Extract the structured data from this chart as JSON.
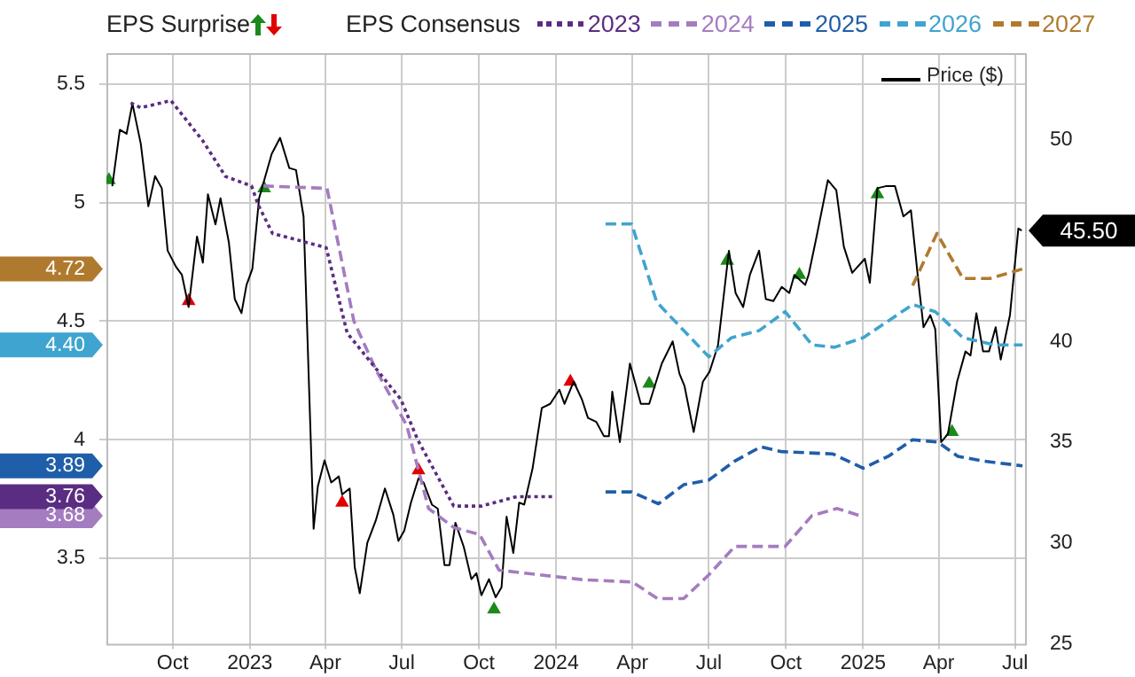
{
  "chart_data": {
    "type": "line",
    "legend_title": "EPS Consensus",
    "legend": "top",
    "grid": true,
    "annotations": [
      "EPS Surprise"
    ],
    "xlim": [
      "2022-07-14",
      "2025-07-13"
    ],
    "xticks": [
      {
        "value": "2022-10-01",
        "label": "Oct"
      },
      {
        "value": "2023-01-01",
        "label": "2023"
      },
      {
        "value": "2023-04-01",
        "label": "Apr"
      },
      {
        "value": "2023-07-01",
        "label": "Jul"
      },
      {
        "value": "2023-10-01",
        "label": "Oct"
      },
      {
        "value": "2024-01-01",
        "label": "2024"
      },
      {
        "value": "2024-04-01",
        "label": "Apr"
      },
      {
        "value": "2024-07-01",
        "label": "Jul"
      },
      {
        "value": "2024-10-01",
        "label": "Oct"
      },
      {
        "value": "2025-01-01",
        "label": "2025"
      },
      {
        "value": "2025-04-01",
        "label": "Apr"
      },
      {
        "value": "2025-07-01",
        "label": "Jul"
      }
    ],
    "ylim": [
      3.14,
      5.63
    ],
    "yticks": [
      3.5,
      {
        "value": 3.68,
        "label": "3.68"
      },
      {
        "value": 3.76,
        "label": "3.76"
      },
      {
        "value": 3.89,
        "label": "3.89"
      },
      4,
      {
        "value": 4.4,
        "label": "4.40"
      },
      4.5,
      {
        "value": 4.72,
        "label": "4.72"
      },
      5,
      5.5
    ],
    "y2lim": [
      25,
      54.3
    ],
    "y2ticks": [
      25,
      30,
      35,
      40,
      50
    ],
    "series": [
      {
        "name": "2023",
        "color": "#5a2d82",
        "line_style": "dotted",
        "marker": "none",
        "x": [
          "2022-08-12",
          "2022-08-24",
          "2022-09-29",
          "2022-11-06",
          "2022-12-03",
          "2023-01-03",
          "2023-01-11",
          "2023-01-28",
          "2023-04-02",
          "2023-04-27",
          "2023-06-30",
          "2023-07-20",
          "2023-09-01",
          "2023-10-04",
          "2023-11-15",
          "2023-12-28"
        ],
        "values": [
          5.42,
          5.4,
          5.43,
          5.26,
          5.11,
          5.07,
          4.99,
          4.87,
          4.81,
          4.45,
          4.17,
          4.0,
          3.72,
          3.72,
          3.76,
          3.76
        ]
      },
      {
        "name": "2024",
        "color": "#a47cc0",
        "line_style": "dashed",
        "marker": "none",
        "x": [
          "2023-01-17",
          "2023-04-03",
          "2023-05-05",
          "2023-06-01",
          "2023-07-07",
          "2023-08-02",
          "2023-09-01",
          "2023-10-02",
          "2023-10-25",
          "2024-02-01",
          "2024-04-01",
          "2024-05-01",
          "2024-06-01",
          "2024-07-01",
          "2024-08-01",
          "2024-09-30",
          "2024-11-01",
          "2024-12-01",
          "2024-12-28"
        ],
        "values": [
          5.07,
          5.06,
          4.5,
          4.29,
          4.06,
          3.71,
          3.63,
          3.6,
          3.45,
          3.41,
          3.4,
          3.33,
          3.33,
          3.43,
          3.55,
          3.55,
          3.68,
          3.71,
          3.68
        ]
      },
      {
        "name": "2025",
        "color": "#1f5ea8",
        "line_style": "dashed",
        "marker": "none",
        "x": [
          "2024-02-29",
          "2024-03-31",
          "2024-05-02",
          "2024-06-01",
          "2024-07-01",
          "2024-08-01",
          "2024-09-01",
          "2024-09-25",
          "2024-11-26",
          "2025-01-01",
          "2025-01-31",
          "2025-03-01",
          "2025-03-31",
          "2025-04-24",
          "2025-05-24",
          "2025-07-10"
        ],
        "values": [
          3.78,
          3.78,
          3.73,
          3.81,
          3.83,
          3.91,
          3.97,
          3.95,
          3.94,
          3.88,
          3.93,
          4.0,
          3.99,
          3.93,
          3.91,
          3.89
        ]
      },
      {
        "name": "2026",
        "color": "#3fa4cf",
        "line_style": "dashed",
        "marker": "none",
        "x": [
          "2024-02-29",
          "2024-03-31",
          "2024-04-30",
          "2024-07-01",
          "2024-07-28",
          "2024-08-30",
          "2024-09-30",
          "2024-11-01",
          "2024-11-28",
          "2025-01-01",
          "2025-03-01",
          "2025-03-28",
          "2025-04-30",
          "2025-06-07",
          "2025-07-10"
        ],
        "values": [
          4.91,
          4.91,
          4.58,
          4.35,
          4.43,
          4.46,
          4.54,
          4.4,
          4.39,
          4.43,
          4.57,
          4.54,
          4.43,
          4.4,
          4.4
        ]
      },
      {
        "name": "2027",
        "color": "#b07a2e",
        "line_style": "dashed",
        "marker": "none",
        "x": [
          "2025-03-01",
          "2025-03-30",
          "2025-04-30",
          "2025-06-01",
          "2025-07-10"
        ],
        "values": [
          4.65,
          4.87,
          4.68,
          4.68,
          4.72
        ]
      },
      {
        "name": "Price ($)",
        "color": "#000000",
        "axis": "y2",
        "line_style": "solid",
        "marker": "none",
        "x": [
          "2022-07-21",
          "2022-07-30",
          "2022-08-07",
          "2022-08-14",
          "2022-08-24",
          "2022-09-02",
          "2022-09-10",
          "2022-09-18",
          "2022-09-25",
          "2022-10-05",
          "2022-10-12",
          "2022-10-20",
          "2022-10-30",
          "2022-11-06",
          "2022-11-12",
          "2022-11-21",
          "2022-11-27",
          "2022-12-07",
          "2022-12-14",
          "2022-12-22",
          "2022-12-28",
          "2023-01-04",
          "2023-01-12",
          "2023-01-27",
          "2023-02-06",
          "2023-02-17",
          "2023-02-25",
          "2023-03-06",
          "2023-03-18",
          "2023-03-23",
          "2023-03-31",
          "2023-04-08",
          "2023-04-17",
          "2023-04-21",
          "2023-04-30",
          "2023-05-06",
          "2023-05-12",
          "2023-05-21",
          "2023-05-31",
          "2023-06-11",
          "2023-06-21",
          "2023-06-27",
          "2023-07-04",
          "2023-07-12",
          "2023-07-21",
          "2023-07-27",
          "2023-08-06",
          "2023-08-13",
          "2023-08-21",
          "2023-08-27",
          "2023-09-03",
          "2023-09-13",
          "2023-09-22",
          "2023-09-28",
          "2023-10-04",
          "2023-10-13",
          "2023-10-21",
          "2023-10-28",
          "2023-11-03",
          "2023-11-11",
          "2023-11-18",
          "2023-11-24",
          "2023-12-04",
          "2023-12-15",
          "2023-12-25",
          "2024-01-05",
          "2024-01-11",
          "2024-01-22",
          "2024-02-01",
          "2024-02-08",
          "2024-02-18",
          "2024-02-27",
          "2024-03-04",
          "2024-03-08",
          "2024-03-17",
          "2024-03-29",
          "2024-04-11",
          "2024-04-21",
          "2024-05-06",
          "2024-05-19",
          "2024-05-27",
          "2024-06-02",
          "2024-06-13",
          "2024-06-24",
          "2024-07-02",
          "2024-07-12",
          "2024-07-25",
          "2024-08-02",
          "2024-08-11",
          "2024-08-19",
          "2024-08-30",
          "2024-09-07",
          "2024-09-16",
          "2024-09-26",
          "2024-10-05",
          "2024-10-11",
          "2024-10-24",
          "2024-10-28",
          "2024-11-07",
          "2024-11-20",
          "2024-11-30",
          "2024-12-09",
          "2024-12-19",
          "2025-01-03",
          "2025-01-09",
          "2025-01-18",
          "2025-01-28",
          "2025-02-08",
          "2025-02-18",
          "2025-02-27",
          "2025-03-07",
          "2025-03-14",
          "2025-03-22",
          "2025-03-28",
          "2025-04-04",
          "2025-04-12",
          "2025-04-23",
          "2025-05-03",
          "2025-05-09",
          "2025-05-16",
          "2025-05-24",
          "2025-05-31",
          "2025-06-08",
          "2025-06-14",
          "2025-06-25",
          "2025-07-05",
          "2025-07-09"
        ],
        "values": [
          47.7,
          50.5,
          50.3,
          51.8,
          49.8,
          46.7,
          48.2,
          47.6,
          44.5,
          43.7,
          43.3,
          41.7,
          45.2,
          43.9,
          47.3,
          45.8,
          47.1,
          44.9,
          42.1,
          41.4,
          42.8,
          43.6,
          47.1,
          49.3,
          50.1,
          48.6,
          48.5,
          46.2,
          30.7,
          32.8,
          34.1,
          33.0,
          33.3,
          32.4,
          32.7,
          28.8,
          27.5,
          30.0,
          31.1,
          32.7,
          31.4,
          30.1,
          30.6,
          32.0,
          33.2,
          33.0,
          31.9,
          31.7,
          28.9,
          28.9,
          31.0,
          29.8,
          28.2,
          28.5,
          27.4,
          28.2,
          27.3,
          27.8,
          31.3,
          29.5,
          32.0,
          31.9,
          33.7,
          36.7,
          36.9,
          37.6,
          36.9,
          38.0,
          37.1,
          36.2,
          36.0,
          35.3,
          35.3,
          37.5,
          35.0,
          38.9,
          36.9,
          36.9,
          38.9,
          40.0,
          38.4,
          37.8,
          35.5,
          38.0,
          38.5,
          39.8,
          44.5,
          42.4,
          41.7,
          43.3,
          44.5,
          42.1,
          42.0,
          42.7,
          42.4,
          43.3,
          42.8,
          43.3,
          45.3,
          48.0,
          47.5,
          44.7,
          43.4,
          44.1,
          42.9,
          47.6,
          47.7,
          47.7,
          46.2,
          46.5,
          43.3,
          40.7,
          41.3,
          40.6,
          35.0,
          35.4,
          38.0,
          39.5,
          39.3,
          41.4,
          39.5,
          39.5,
          40.7,
          39.1,
          41.3,
          45.6,
          45.5
        ],
        "value_labels": [
          null,
          null,
          null,
          null,
          null,
          null,
          null,
          null,
          null,
          null,
          null,
          null,
          null,
          null,
          null,
          null,
          null,
          null,
          null,
          null,
          null,
          null,
          null,
          null,
          null,
          null,
          null,
          null,
          null,
          null,
          null,
          null,
          null,
          null,
          null,
          null,
          null,
          null,
          null,
          null,
          null,
          null,
          null,
          null,
          null,
          null,
          null,
          null,
          null,
          null,
          null,
          null,
          null,
          null,
          null,
          null,
          null,
          null,
          null,
          null,
          null,
          null,
          null,
          null,
          null,
          null,
          null,
          null,
          null,
          null,
          null,
          null,
          null,
          null,
          null,
          null,
          null,
          null,
          null,
          null,
          null,
          null,
          null,
          null,
          null,
          null,
          null,
          null,
          null,
          null,
          null,
          null,
          null,
          null,
          null,
          null,
          null,
          null,
          null,
          null,
          null,
          null,
          null,
          null,
          null,
          null,
          null,
          null,
          null,
          null,
          null,
          null,
          null,
          null,
          null,
          null,
          null,
          null,
          null,
          null,
          null,
          null,
          null,
          null,
          null,
          null,
          "45.50"
        ]
      },
      {
        "type": "scatter",
        "color": "#1a8a1a",
        "axis": "y2",
        "marker": "triangle",
        "x": [
          "2022-07-17",
          "2023-01-18",
          "2023-10-19",
          "2024-04-21",
          "2024-07-23",
          "2024-10-17",
          "2025-01-18",
          "2025-04-17"
        ],
        "values": [
          48.0,
          47.6,
          26.7,
          37.9,
          44.0,
          43.3,
          47.3,
          35.5
        ]
      },
      {
        "type": "scatter",
        "color": "#e00000",
        "axis": "y2",
        "marker": "triangle",
        "x": [
          "2022-10-20",
          "2023-04-21",
          "2023-07-21",
          "2024-01-18"
        ],
        "values": [
          42.0,
          32.0,
          33.6,
          38.0
        ]
      }
    ]
  }
}
